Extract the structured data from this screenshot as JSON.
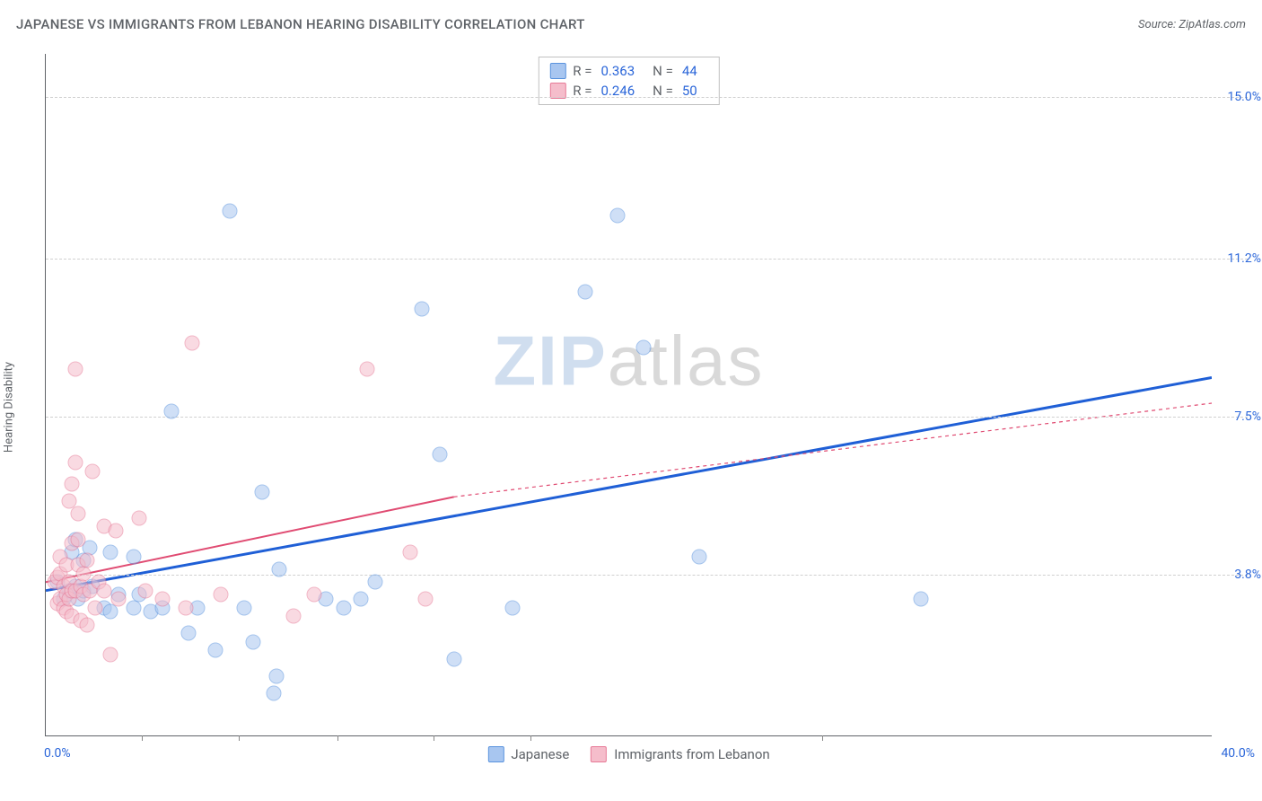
{
  "title": "JAPANESE VS IMMIGRANTS FROM LEBANON HEARING DISABILITY CORRELATION CHART",
  "source": "Source: ZipAtlas.com",
  "y_axis_label": "Hearing Disability",
  "watermark": {
    "part1": "ZIP",
    "part2": "atlas"
  },
  "chart": {
    "type": "scatter",
    "xlim": [
      0,
      40
    ],
    "ylim": [
      0,
      16
    ],
    "x_min_label": "0.0%",
    "x_max_label": "40.0%",
    "x_ticks": [
      3.3,
      6.6,
      10,
      13.3,
      16.6,
      26.6
    ],
    "y_gridlines": [
      {
        "value": 3.8,
        "label": "3.8%"
      },
      {
        "value": 7.5,
        "label": "7.5%"
      },
      {
        "value": 11.2,
        "label": "11.2%"
      },
      {
        "value": 15.0,
        "label": "15.0%"
      }
    ],
    "background_color": "#ffffff",
    "grid_color": "#d0d0d0",
    "axis_color": "#5f6368",
    "label_color": "#2b66d9",
    "marker_radius": 8.5,
    "marker_opacity": 0.55
  },
  "series": [
    {
      "name": "Japanese",
      "label": "Japanese",
      "fill_color": "#a8c6f0",
      "stroke_color": "#5a93de",
      "trend_color": "#1f5fd6",
      "trend_dash": "none",
      "trend_width": 3,
      "R": "0.363",
      "N": "44",
      "trend": {
        "x1": 0,
        "y1": 3.4,
        "x2": 40,
        "y2": 8.4
      },
      "points": [
        [
          0.4,
          3.6
        ],
        [
          0.6,
          3.2
        ],
        [
          0.8,
          3.4
        ],
        [
          0.9,
          4.3
        ],
        [
          1.0,
          4.6
        ],
        [
          1.0,
          3.5
        ],
        [
          1.1,
          3.2
        ],
        [
          1.3,
          3.4
        ],
        [
          1.3,
          4.1
        ],
        [
          1.5,
          4.4
        ],
        [
          1.6,
          3.5
        ],
        [
          2.0,
          3.0
        ],
        [
          2.2,
          4.3
        ],
        [
          2.2,
          2.9
        ],
        [
          2.5,
          3.3
        ],
        [
          3.0,
          4.2
        ],
        [
          3.0,
          3.0
        ],
        [
          3.2,
          3.3
        ],
        [
          3.6,
          2.9
        ],
        [
          4.0,
          3.0
        ],
        [
          4.3,
          7.6
        ],
        [
          4.9,
          2.4
        ],
        [
          5.2,
          3.0
        ],
        [
          5.8,
          2.0
        ],
        [
          6.3,
          12.3
        ],
        [
          6.8,
          3.0
        ],
        [
          7.1,
          2.2
        ],
        [
          7.4,
          5.7
        ],
        [
          7.8,
          1.0
        ],
        [
          7.9,
          1.4
        ],
        [
          8.0,
          3.9
        ],
        [
          9.6,
          3.2
        ],
        [
          10.2,
          3.0
        ],
        [
          10.8,
          3.2
        ],
        [
          11.3,
          3.6
        ],
        [
          12.9,
          10.0
        ],
        [
          13.5,
          6.6
        ],
        [
          14.0,
          1.8
        ],
        [
          16.0,
          3.0
        ],
        [
          18.5,
          10.4
        ],
        [
          19.6,
          12.2
        ],
        [
          20.5,
          9.1
        ],
        [
          22.4,
          4.2
        ],
        [
          30.0,
          3.2
        ]
      ]
    },
    {
      "name": "Immigrants from Lebanon",
      "label": "Immigrants from Lebanon",
      "fill_color": "#f5bdcb",
      "stroke_color": "#e77a97",
      "trend_color": "#e04b72",
      "trend_dash": "4 4",
      "trend_width": 2,
      "R": "0.246",
      "N": "50",
      "trend": {
        "x1": 0,
        "y1": 3.6,
        "x2": 14,
        "y2": 5.6
      },
      "trend_ext": {
        "x1": 14,
        "y1": 5.6,
        "x2": 40,
        "y2": 7.8
      },
      "points": [
        [
          0.3,
          3.6
        ],
        [
          0.4,
          3.1
        ],
        [
          0.4,
          3.7
        ],
        [
          0.5,
          3.2
        ],
        [
          0.5,
          3.8
        ],
        [
          0.5,
          4.2
        ],
        [
          0.6,
          3.0
        ],
        [
          0.6,
          3.5
        ],
        [
          0.7,
          2.9
        ],
        [
          0.7,
          3.3
        ],
        [
          0.7,
          4.0
        ],
        [
          0.8,
          3.2
        ],
        [
          0.8,
          3.6
        ],
        [
          0.8,
          5.5
        ],
        [
          0.9,
          2.8
        ],
        [
          0.9,
          3.4
        ],
        [
          0.9,
          4.5
        ],
        [
          0.9,
          5.9
        ],
        [
          1.0,
          3.4
        ],
        [
          1.0,
          6.4
        ],
        [
          1.0,
          8.6
        ],
        [
          1.1,
          4.0
        ],
        [
          1.1,
          4.6
        ],
        [
          1.1,
          5.2
        ],
        [
          1.2,
          2.7
        ],
        [
          1.2,
          3.5
        ],
        [
          1.3,
          3.3
        ],
        [
          1.3,
          3.8
        ],
        [
          1.4,
          2.6
        ],
        [
          1.4,
          4.1
        ],
        [
          1.5,
          3.4
        ],
        [
          1.6,
          6.2
        ],
        [
          1.7,
          3.0
        ],
        [
          1.8,
          3.6
        ],
        [
          2.0,
          4.9
        ],
        [
          2.0,
          3.4
        ],
        [
          2.2,
          1.9
        ],
        [
          2.4,
          4.8
        ],
        [
          2.5,
          3.2
        ],
        [
          3.2,
          5.1
        ],
        [
          3.4,
          3.4
        ],
        [
          4.0,
          3.2
        ],
        [
          4.8,
          3.0
        ],
        [
          5.0,
          9.2
        ],
        [
          6.0,
          3.3
        ],
        [
          8.5,
          2.8
        ],
        [
          9.2,
          3.3
        ],
        [
          11.0,
          8.6
        ],
        [
          12.5,
          4.3
        ],
        [
          13.0,
          3.2
        ]
      ]
    }
  ],
  "legend": {
    "R_prefix": "R =",
    "N_prefix": "N ="
  }
}
